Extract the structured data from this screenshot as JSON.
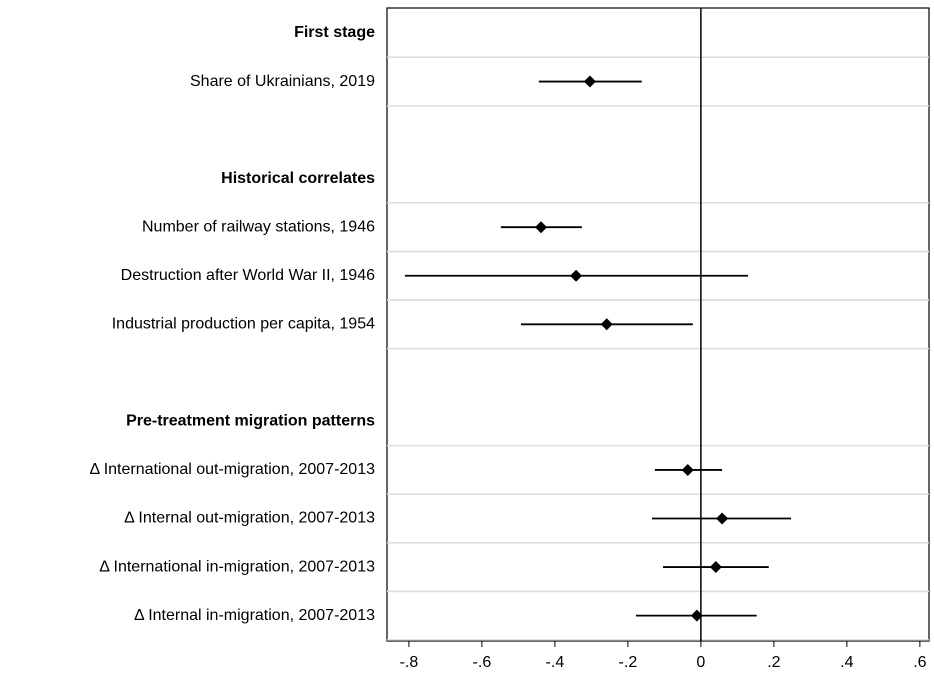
{
  "chart_data": {
    "type": "coefplot",
    "groups": [
      {
        "title": "First stage",
        "categories": [
          "Share of Ukrainians, 2019"
        ],
        "values": [
          -0.304
        ],
        "ci_low": [
          -0.444
        ],
        "ci_high": [
          -0.162
        ]
      },
      {
        "title": "Historical correlates",
        "categories": [
          "Number of railway stations, 1946",
          "Destruction after World War II, 1946",
          "Industrial production per capita, 1954"
        ],
        "values": [
          -0.438,
          -0.342,
          -0.258
        ],
        "ci_low": [
          -0.548,
          -0.811,
          -0.493
        ],
        "ci_high": [
          -0.326,
          0.129,
          -0.022
        ]
      },
      {
        "title": "Pre-treatment migration patterns",
        "categories": [
          "Δ International out-migration, 2007-2013",
          "Δ Internal out-migration, 2007-2013",
          "Δ International in-migration, 2007-2013",
          "Δ Internal in-migration, 2007-2013"
        ],
        "values": [
          -0.036,
          0.058,
          0.041,
          -0.011
        ],
        "ci_low": [
          -0.126,
          -0.134,
          -0.104,
          -0.178
        ],
        "ci_high": [
          0.058,
          0.247,
          0.186,
          0.153
        ]
      }
    ],
    "xlim": [
      -0.86,
      0.625
    ],
    "xticks": [
      {
        "value": -0.8,
        "label": "-.8"
      },
      {
        "value": -0.6,
        "label": "-.6"
      },
      {
        "value": -0.4,
        "label": "-.4"
      },
      {
        "value": -0.2,
        "label": "-.2"
      },
      0,
      {
        "value": 0.2,
        "label": ".2"
      },
      {
        "value": 0.4,
        "label": ".4"
      },
      {
        "value": 0.6,
        "label": ".6"
      }
    ],
    "xline": 0,
    "color": "#000000",
    "grid": true
  }
}
